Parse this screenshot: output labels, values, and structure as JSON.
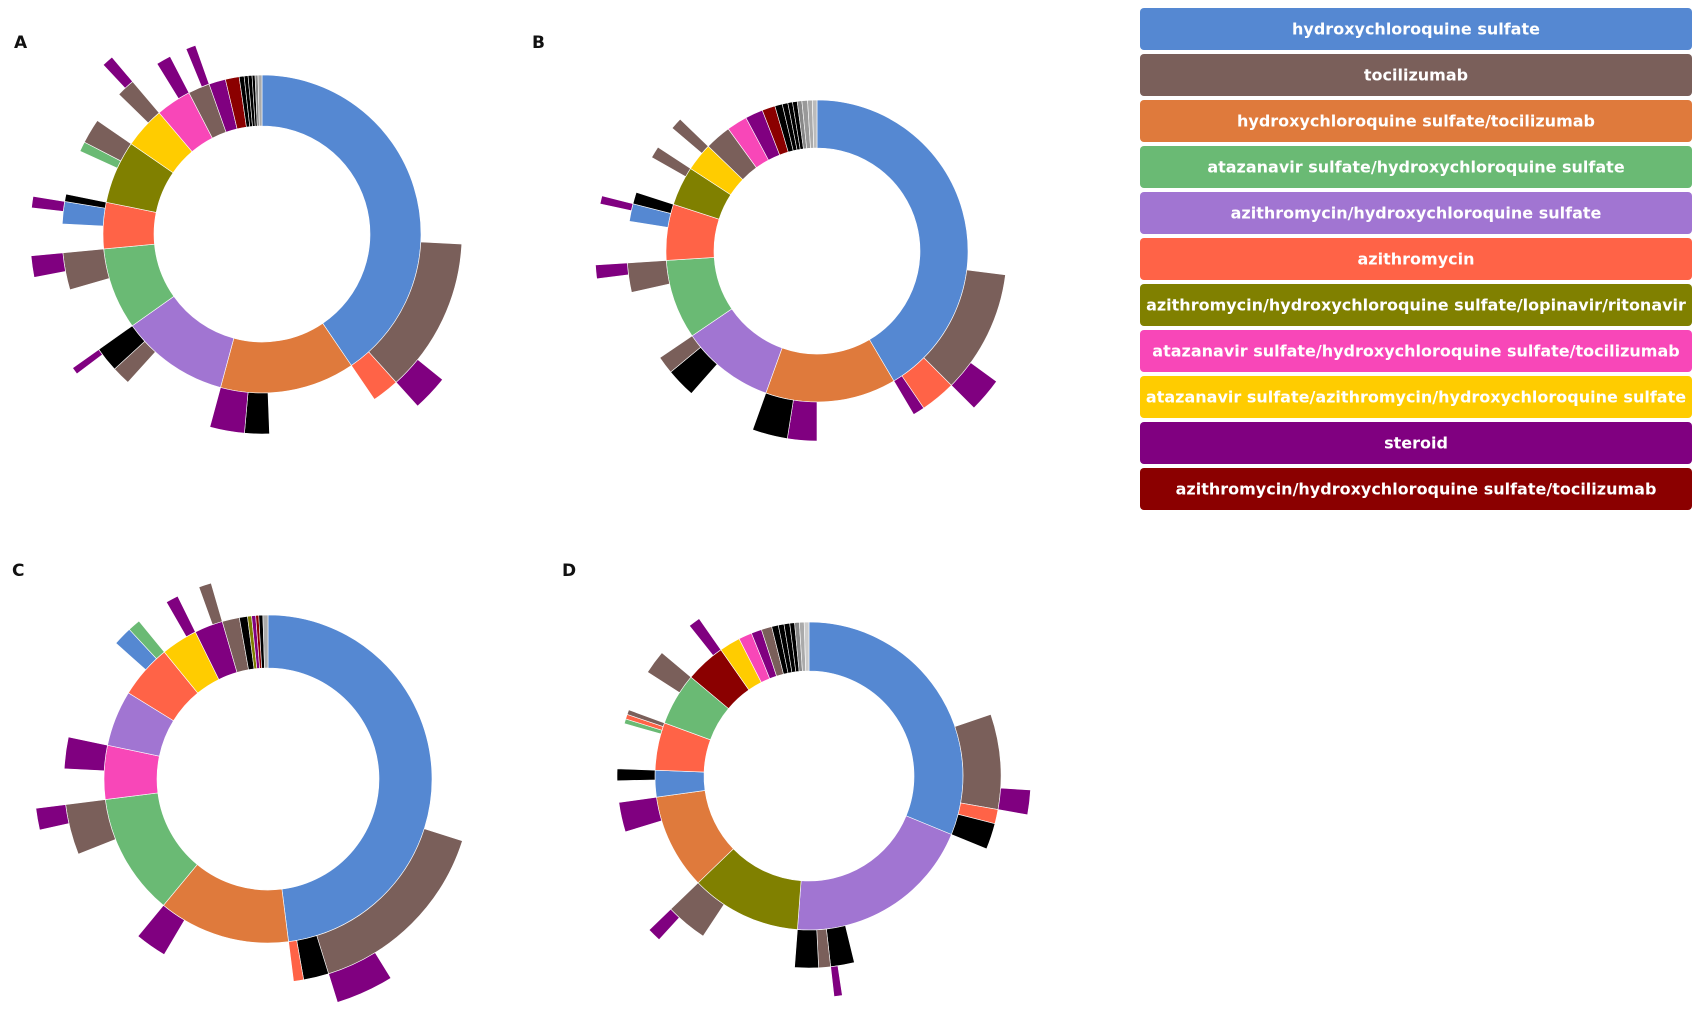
{
  "legend": {
    "items": [
      {
        "name": "hydroxychloroquine sulfate",
        "color": "#5588d2"
      },
      {
        "name": "tocilizumab",
        "color": "#7a5f5a"
      },
      {
        "name": "hydroxychloroquine sulfate/tocilizumab",
        "color": "#df7a3c"
      },
      {
        "name": "atazanavir sulfate/hydroxychloroquine sulfate",
        "color": "#6aba74"
      },
      {
        "name": "azithromycin/hydroxychloroquine sulfate",
        "color": "#a175d2"
      },
      {
        "name": "azithromycin",
        "color": "#ff6347"
      },
      {
        "name": "azithromycin/hydroxychloroquine sulfate/lopinavir/ritonavir",
        "color": "#808000"
      },
      {
        "name": "atazanavir sulfate/hydroxychloroquine sulfate/tocilizumab",
        "color": "#f847b8"
      },
      {
        "name": "atazanavir sulfate/azithromycin/hydroxychloroquine sulfate",
        "color": "#ffcc00"
      },
      {
        "name": "steroid",
        "color": "#800080"
      },
      {
        "name": "azithromycin/hydroxychloroquine sulfate/tocilizumab",
        "color": "#8b0000"
      }
    ]
  },
  "chart_data": [
    {
      "type": "sunburst",
      "title": "A",
      "levels": [
        [
          {
            "color": "#5588d2",
            "value": 40.5
          },
          {
            "color": "#df7a3c",
            "value": 13.7
          },
          {
            "color": "#a175d2",
            "value": 11
          },
          {
            "color": "#6aba74",
            "value": 8.3
          },
          {
            "color": "#ff6347",
            "value": 4.7
          },
          {
            "color": "#808000",
            "value": 6.4
          },
          {
            "color": "#ffcc00",
            "value": 4.2
          },
          {
            "color": "#f847b8",
            "value": 3.6
          },
          {
            "color": "#7a5f5a",
            "value": 2.2
          },
          {
            "color": "#800080",
            "value": 1.7
          },
          {
            "color": "#8b0000",
            "value": 1.4
          },
          {
            "color": "#000000",
            "value": 0.5
          },
          {
            "color": "#000000",
            "value": 0.4
          },
          {
            "color": "#000000",
            "value": 0.4
          },
          {
            "color": "#000000",
            "value": 0.3
          },
          {
            "color": "#888888",
            "value": 0.3
          },
          {
            "color": "#aaaaaa",
            "value": 0.4
          }
        ],
        [
          {
            "parent": 0,
            "color": "#7a5f5a",
            "value": 12.5
          },
          {
            "parent": 0,
            "color": "#ff6347",
            "value": 2.2
          },
          {
            "parent": 1,
            "color": "#000000",
            "value": 2
          },
          {
            "parent": 1,
            "color": "#800080",
            "value": 2.8
          },
          {
            "parent": 2,
            "color": "#7a5f5a",
            "value": 1.5
          },
          {
            "parent": 2,
            "color": "#000000",
            "value": 2
          },
          {
            "parent": 3,
            "color": "#7a5f5a",
            "value": 3
          },
          {
            "parent": 4,
            "color": "#5588d2",
            "value": 1.8
          },
          {
            "parent": 4,
            "color": "#000000",
            "value": 0.6
          },
          {
            "parent": 5,
            "color": "#6aba74",
            "value": 0.8
          },
          {
            "parent": 5,
            "color": "#7a5f5a",
            "value": 2
          },
          {
            "parent": 6,
            "color": "#7a5f5a",
            "value": 1.5
          },
          {
            "parent": 7,
            "color": "#800080",
            "value": 1.2
          },
          {
            "parent": 8,
            "color": "#800080",
            "value": 0.8
          }
        ],
        [
          {
            "parent": 0,
            "color": "#800080",
            "value": 2.5
          },
          {
            "parent": 6,
            "color": "#800080",
            "value": 1.5
          },
          {
            "parent": 7,
            "color": "#800080",
            "value": 0.8
          },
          {
            "parent": 11,
            "color": "#800080",
            "value": 0.8
          },
          {
            "parent": 5,
            "color": "#800080",
            "value": 0.5
          }
        ]
      ]
    },
    {
      "type": "sunburst",
      "title": "B",
      "levels": [
        [
          {
            "color": "#5588d2",
            "value": 41.5
          },
          {
            "color": "#df7a3c",
            "value": 14
          },
          {
            "color": "#a175d2",
            "value": 10
          },
          {
            "color": "#6aba74",
            "value": 8.5
          },
          {
            "color": "#ff6347",
            "value": 6
          },
          {
            "color": "#808000",
            "value": 4.2
          },
          {
            "color": "#ffcc00",
            "value": 3
          },
          {
            "color": "#7a5f5a",
            "value": 2.8
          },
          {
            "color": "#f847b8",
            "value": 2.2
          },
          {
            "color": "#800080",
            "value": 1.9
          },
          {
            "color": "#8b0000",
            "value": 1.4
          },
          {
            "color": "#000000",
            "value": 0.8
          },
          {
            "color": "#000000",
            "value": 0.6
          },
          {
            "color": "#000000",
            "value": 0.5
          },
          {
            "color": "#000000",
            "value": 0.5
          },
          {
            "color": "#888888",
            "value": 0.5
          },
          {
            "color": "#999999",
            "value": 0.6
          },
          {
            "color": "#aaaaaa",
            "value": 0.5
          },
          {
            "color": "#bbbbbb",
            "value": 0.5
          }
        ],
        [
          {
            "parent": 0,
            "color": "#7a5f5a",
            "value": 10.5
          },
          {
            "parent": 0,
            "color": "#ff6347",
            "value": 3
          },
          {
            "parent": 0,
            "color": "#800080",
            "value": 1
          },
          {
            "parent": 1,
            "color": "#800080",
            "value": 2.5
          },
          {
            "parent": 1,
            "color": "#000000",
            "value": 3
          },
          {
            "parent": 2,
            "color": "#000000",
            "value": 2.5
          },
          {
            "parent": 2,
            "color": "#7a5f5a",
            "value": 1.5
          },
          {
            "parent": 3,
            "color": "#7a5f5a",
            "value": 2.5
          },
          {
            "parent": 4,
            "color": "#5588d2",
            "value": 1.5
          },
          {
            "parent": 4,
            "color": "#000000",
            "value": 1
          },
          {
            "parent": 5,
            "color": "#7a5f5a",
            "value": 1
          },
          {
            "parent": 6,
            "color": "#7a5f5a",
            "value": 1
          }
        ],
        [
          {
            "parent": 0,
            "color": "#800080",
            "value": 2.5
          },
          {
            "parent": 7,
            "color": "#800080",
            "value": 1
          },
          {
            "parent": 8,
            "color": "#800080",
            "value": 0.6
          }
        ]
      ]
    },
    {
      "type": "sunburst",
      "title": "C",
      "levels": [
        [
          {
            "color": "#5588d2",
            "value": 48
          },
          {
            "color": "#df7a3c",
            "value": 13
          },
          {
            "color": "#6aba74",
            "value": 12
          },
          {
            "color": "#f847b8",
            "value": 5.3
          },
          {
            "color": "#a175d2",
            "value": 5.5
          },
          {
            "color": "#ff6347",
            "value": 5.3
          },
          {
            "color": "#ffcc00",
            "value": 3.6
          },
          {
            "color": "#800080",
            "value": 2.8
          },
          {
            "color": "#7a5f5a",
            "value": 1.7
          },
          {
            "color": "#000000",
            "value": 0.8
          },
          {
            "color": "#808000",
            "value": 0.4
          },
          {
            "color": "#800080",
            "value": 0.4
          },
          {
            "color": "#8b0000",
            "value": 0.3
          },
          {
            "color": "#000000",
            "value": 0.4
          },
          {
            "color": "#aaaaaa",
            "value": 0.5
          }
        ],
        [
          {
            "parent": 0,
            "color": "#7a5f5a",
            "value": 15.3
          },
          {
            "parent": 0,
            "color": "#000000",
            "value": 2
          },
          {
            "parent": 0,
            "color": "#ff6347",
            "value": 0.8
          },
          {
            "parent": 1,
            "color": "#800080",
            "value": 2.5
          },
          {
            "parent": 2,
            "color": "#7a5f5a",
            "value": 4
          },
          {
            "parent": 3,
            "color": "#800080",
            "value": 2.5
          },
          {
            "parent": 5,
            "color": "#5588d2",
            "value": 1.5
          },
          {
            "parent": 5,
            "color": "#6aba74",
            "value": 1
          },
          {
            "parent": 6,
            "color": "#800080",
            "value": 1
          },
          {
            "parent": 7,
            "color": "#7a5f5a",
            "value": 1
          }
        ],
        [
          {
            "parent": 0,
            "color": "#800080",
            "value": 4
          },
          {
            "parent": 4,
            "color": "#800080",
            "value": 1.5
          }
        ]
      ]
    },
    {
      "type": "sunburst",
      "title": "D",
      "levels": [
        [
          {
            "color": "#5588d2",
            "value": 31.2
          },
          {
            "color": "#a175d2",
            "value": 20
          },
          {
            "color": "#808000",
            "value": 11.6
          },
          {
            "color": "#df7a3c",
            "value": 10
          },
          {
            "color": "#5588d2",
            "value": 2.8
          },
          {
            "color": "#ff6347",
            "value": 5
          },
          {
            "color": "#6aba74",
            "value": 5.5
          },
          {
            "color": "#8b0000",
            "value": 4.2
          },
          {
            "color": "#ffcc00",
            "value": 2.2
          },
          {
            "color": "#f847b8",
            "value": 1.4
          },
          {
            "color": "#800080",
            "value": 1.1
          },
          {
            "color": "#7a5f5a",
            "value": 1.1
          },
          {
            "color": "#000000",
            "value": 0.7
          },
          {
            "color": "#000000",
            "value": 0.6
          },
          {
            "color": "#000000",
            "value": 0.6
          },
          {
            "color": "#000000",
            "value": 0.5
          },
          {
            "color": "#888888",
            "value": 0.5
          },
          {
            "color": "#aaaaaa",
            "value": 0.5
          },
          {
            "color": "#cccccc",
            "value": 0.5
          }
        ],
        [
          {
            "parent": 0,
            "color": "#7a5f5a",
            "value": 8
          },
          {
            "parent": 0,
            "color": "#ff6347",
            "value": 1.2
          },
          {
            "parent": 0,
            "color": "#000000",
            "value": 2.2
          },
          {
            "parent": 1,
            "color": "#000000",
            "value": 2
          },
          {
            "parent": 1,
            "color": "#7a5f5a",
            "value": 1
          },
          {
            "parent": 1,
            "color": "#000000",
            "value": 2
          },
          {
            "parent": 2,
            "color": "#7a5f5a",
            "value": 3.5
          },
          {
            "parent": 3,
            "color": "#800080",
            "value": 2.5
          },
          {
            "parent": 4,
            "color": "#000000",
            "value": 1
          },
          {
            "parent": 5,
            "color": "#6aba74",
            "value": 0.4
          },
          {
            "parent": 5,
            "color": "#ff6347",
            "value": 0.4
          },
          {
            "parent": 5,
            "color": "#7a5f5a",
            "value": 0.4
          },
          {
            "parent": 6,
            "color": "#7a5f5a",
            "value": 2
          },
          {
            "parent": 7,
            "color": "#800080",
            "value": 1
          }
        ],
        [
          {
            "parent": 0,
            "color": "#800080",
            "value": 1.8
          },
          {
            "parent": 6,
            "color": "#800080",
            "value": 1
          },
          {
            "parent": 3,
            "color": "#800080",
            "value": 0.6
          }
        ]
      ]
    }
  ]
}
